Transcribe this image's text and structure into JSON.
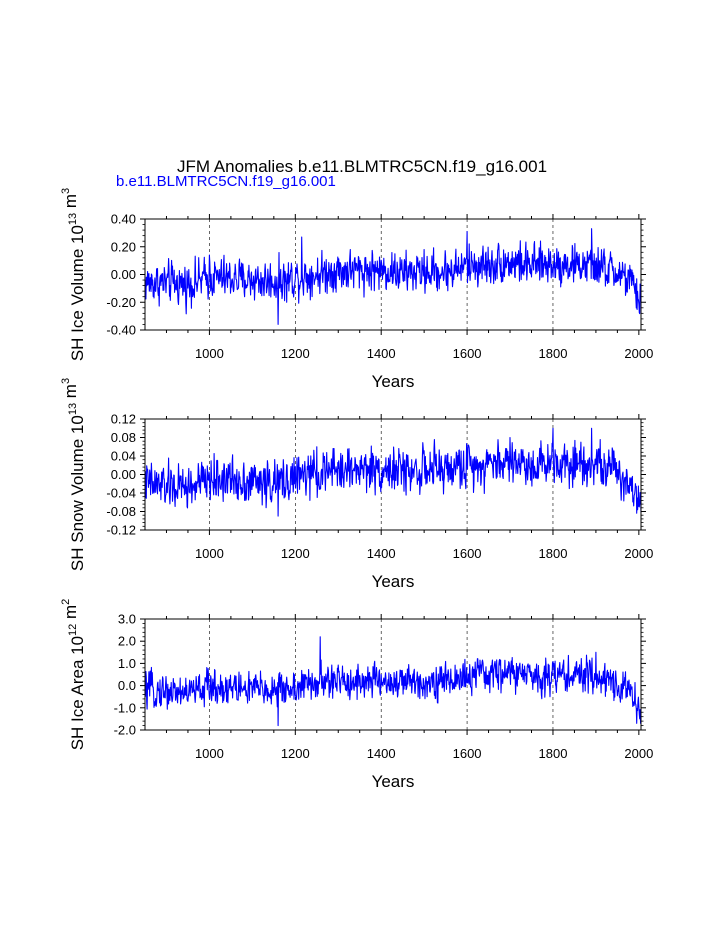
{
  "title": "JFM Anomalies b.e11.BLMTRC5CN.f19_g16.001",
  "subtitle": "b.e11.BLMTRC5CN.f19_g16.001",
  "colors": {
    "series": "#0000ff",
    "subtitle": "#0000ff",
    "axes": "#000000",
    "grid": "#000000"
  },
  "chart_data": [
    {
      "type": "line",
      "name": "ice-volume",
      "ylabel_main": "SH Ice Volume 10",
      "ylabel_exp": "13",
      "ylabel_unit": " m",
      "ylabel_unit_exp": "3",
      "xlabel": "Years",
      "xlim": [
        850,
        2005
      ],
      "ylim": [
        -0.4,
        0.4
      ],
      "xticks": [
        1000,
        1200,
        1400,
        1600,
        1800,
        2000
      ],
      "yticks": [
        "0.40",
        "0.20",
        "0.00",
        "-0.20",
        "-0.40"
      ],
      "ytick_values": [
        0.4,
        0.2,
        0.0,
        -0.2,
        -0.4
      ],
      "grid_x": [
        1000,
        1200,
        1400,
        1600,
        1800
      ],
      "series": [
        {
          "name": "b.e11.BLMTRC5CN.f19_g16.001",
          "trend": [
            [
              850,
              -0.06
            ],
            [
              900,
              -0.06
            ],
            [
              950,
              -0.07
            ],
            [
              1000,
              -0.02
            ],
            [
              1050,
              -0.03
            ],
            [
              1100,
              -0.04
            ],
            [
              1150,
              -0.05
            ],
            [
              1200,
              -0.02
            ],
            [
              1250,
              0.0
            ],
            [
              1300,
              0.03
            ],
            [
              1350,
              0.03
            ],
            [
              1400,
              0.03
            ],
            [
              1450,
              0.01
            ],
            [
              1500,
              0.02
            ],
            [
              1550,
              0.02
            ],
            [
              1600,
              0.06
            ],
            [
              1650,
              0.07
            ],
            [
              1700,
              0.09
            ],
            [
              1750,
              0.06
            ],
            [
              1800,
              0.08
            ],
            [
              1850,
              0.07
            ],
            [
              1900,
              0.06
            ],
            [
              1950,
              0.01
            ],
            [
              1980,
              -0.05
            ],
            [
              2005,
              -0.22
            ]
          ],
          "noise": 0.14,
          "extremes": [
            [
              1000,
              0.14
            ],
            [
              1160,
              -0.36
            ],
            [
              1215,
              0.27
            ],
            [
              1600,
              0.31
            ],
            [
              1890,
              0.33
            ],
            [
              1180,
              -0.2
            ]
          ]
        }
      ]
    },
    {
      "type": "line",
      "name": "snow-volume",
      "ylabel_main": "SH Snow Volume 10",
      "ylabel_exp": "13",
      "ylabel_unit": " m",
      "ylabel_unit_exp": "3",
      "xlabel": "Years",
      "xlim": [
        850,
        2005
      ],
      "ylim": [
        -0.12,
        0.12
      ],
      "xticks": [
        1000,
        1200,
        1400,
        1600,
        1800,
        2000
      ],
      "yticks": [
        "0.12",
        "0.08",
        "0.04",
        "0.00",
        "-0.04",
        "-0.08",
        "-0.12"
      ],
      "ytick_values": [
        0.12,
        0.08,
        0.04,
        0.0,
        -0.04,
        -0.08,
        -0.12
      ],
      "grid_x": [
        1000,
        1200,
        1400,
        1600,
        1800
      ],
      "series": [
        {
          "name": "b.e11.BLMTRC5CN.f19_g16.001",
          "trend": [
            [
              850,
              -0.02
            ],
            [
              900,
              -0.025
            ],
            [
              950,
              -0.03
            ],
            [
              1000,
              -0.01
            ],
            [
              1050,
              -0.01
            ],
            [
              1100,
              -0.015
            ],
            [
              1150,
              -0.02
            ],
            [
              1200,
              -0.005
            ],
            [
              1250,
              0.0
            ],
            [
              1300,
              0.01
            ],
            [
              1350,
              0.012
            ],
            [
              1400,
              0.012
            ],
            [
              1450,
              0.008
            ],
            [
              1500,
              0.01
            ],
            [
              1550,
              0.01
            ],
            [
              1600,
              0.02
            ],
            [
              1650,
              0.025
            ],
            [
              1700,
              0.03
            ],
            [
              1750,
              0.02
            ],
            [
              1800,
              0.03
            ],
            [
              1850,
              0.028
            ],
            [
              1900,
              0.025
            ],
            [
              1950,
              0.005
            ],
            [
              1980,
              -0.02
            ],
            [
              2005,
              -0.06
            ]
          ],
          "noise": 0.045,
          "extremes": [
            [
              1160,
              -0.09
            ],
            [
              1250,
              0.06
            ],
            [
              1800,
              0.1
            ],
            [
              1890,
              0.1
            ],
            [
              1700,
              0.08
            ]
          ]
        }
      ]
    },
    {
      "type": "line",
      "name": "ice-area",
      "ylabel_main": "SH Ice Area 10",
      "ylabel_exp": "12",
      "ylabel_unit": " m",
      "ylabel_unit_exp": "2",
      "xlabel": "Years",
      "xlim": [
        850,
        2005
      ],
      "ylim": [
        -2.0,
        3.0
      ],
      "xticks": [
        1000,
        1200,
        1400,
        1600,
        1800,
        2000
      ],
      "yticks": [
        "3.0",
        "2.0",
        "1.0",
        "0.0",
        "-1.0",
        "-2.0"
      ],
      "ytick_values": [
        3.0,
        2.0,
        1.0,
        0.0,
        -1.0,
        -2.0
      ],
      "grid_x": [
        1000,
        1200,
        1400,
        1600,
        1800
      ],
      "series": [
        {
          "name": "b.e11.BLMTRC5CN.f19_g16.001",
          "trend": [
            [
              850,
              -0.2
            ],
            [
              900,
              -0.25
            ],
            [
              950,
              -0.3
            ],
            [
              1000,
              -0.05
            ],
            [
              1050,
              -0.1
            ],
            [
              1100,
              -0.15
            ],
            [
              1150,
              -0.2
            ],
            [
              1200,
              -0.1
            ],
            [
              1250,
              0.1
            ],
            [
              1300,
              0.2
            ],
            [
              1350,
              0.2
            ],
            [
              1400,
              0.2
            ],
            [
              1450,
              0.1
            ],
            [
              1500,
              0.2
            ],
            [
              1550,
              0.2
            ],
            [
              1600,
              0.4
            ],
            [
              1650,
              0.5
            ],
            [
              1700,
              0.6
            ],
            [
              1750,
              0.4
            ],
            [
              1800,
              0.5
            ],
            [
              1850,
              0.45
            ],
            [
              1900,
              0.4
            ],
            [
              1950,
              0.1
            ],
            [
              1980,
              -0.3
            ],
            [
              2005,
              -1.2
            ]
          ],
          "noise": 0.75,
          "extremes": [
            [
              1160,
              -1.8
            ],
            [
              1258,
              2.2
            ],
            [
              1900,
              1.5
            ],
            [
              1995,
              -1.7
            ]
          ]
        }
      ]
    }
  ]
}
